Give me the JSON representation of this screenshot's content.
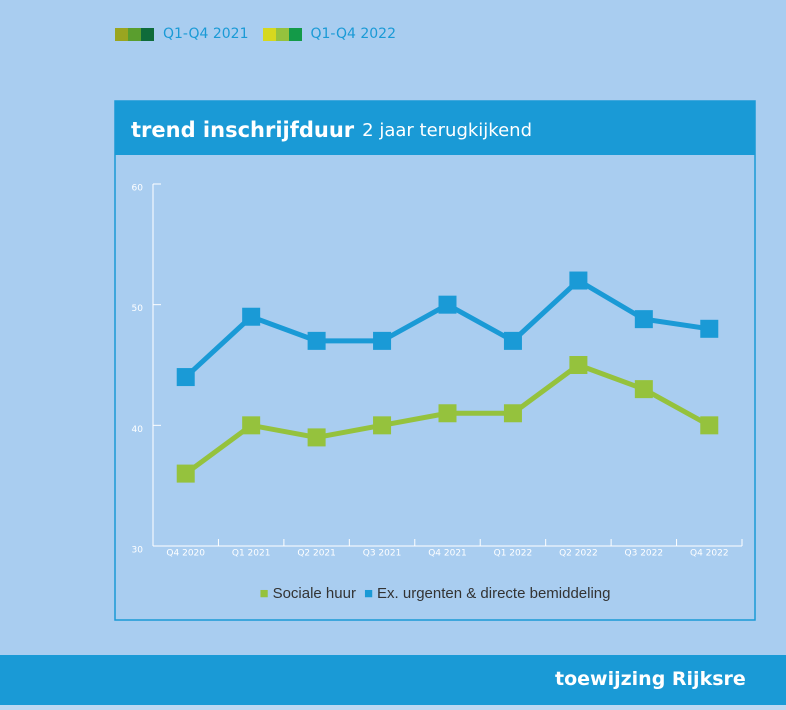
{
  "top_legend": [
    {
      "label": "Q1-Q4 2021",
      "colors": [
        "#9aa520",
        "#5a9e2e",
        "#0f6b3a"
      ]
    },
    {
      "label": "Q1-Q4 2022",
      "colors": [
        "#d6d81e",
        "#95c23d",
        "#139a48"
      ]
    }
  ],
  "chart_data": {
    "type": "line",
    "title": "trend inschrijfduur",
    "subtitle": "2 jaar terugkijkend",
    "categories": [
      "Q4 2020",
      "Q1 2021",
      "Q2 2021",
      "Q3 2021",
      "Q4 2021",
      "Q1 2022",
      "Q2 2022",
      "Q3 2022",
      "Q4 2022"
    ],
    "series": [
      {
        "name": "Sociale huur",
        "color": "#95c23d",
        "values": [
          36,
          40,
          39,
          40,
          41,
          41,
          45,
          43,
          40
        ]
      },
      {
        "name": "Ex. urgenten & directe bemiddeling",
        "color": "#1a9ad6",
        "values": [
          44,
          49,
          47,
          47,
          50,
          47,
          52,
          48.8,
          48
        ]
      }
    ],
    "ylim": [
      30,
      60
    ],
    "yticks": [
      30,
      40,
      50,
      60
    ],
    "legend": "bottom"
  },
  "footer": {
    "title": "toewijzing Rijksre"
  }
}
